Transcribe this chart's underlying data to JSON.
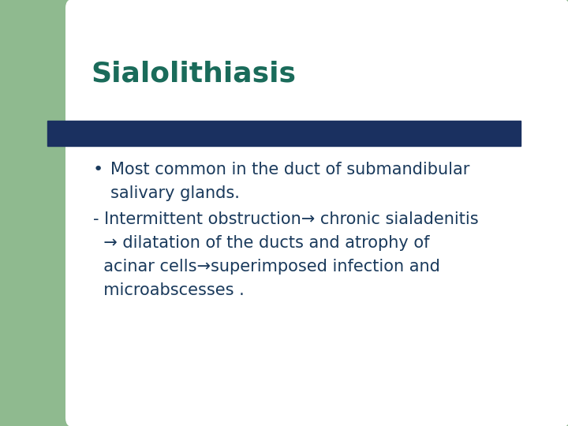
{
  "title": "Sialolithiasis",
  "title_color": "#1a6b5a",
  "title_fontsize": 26,
  "bar_color": "#1a3060",
  "background_color": "#ffffff",
  "green_color": "#8fba8f",
  "bullet_text_line1": "Most common in the duct of submandibular",
  "bullet_text_line2": "salivary glands.",
  "dash_text_line1": "- Intermittent obstruction→ chronic sialadenitis",
  "dash_text_line2": "  → dilatation of the ducts and atrophy of",
  "dash_text_line3": "  acinar cells→superimposed infection and",
  "dash_text_line4": "  microabscesses .",
  "body_text_color": "#1a3a5c",
  "body_fontsize": 15,
  "bullet_symbol": "l"
}
